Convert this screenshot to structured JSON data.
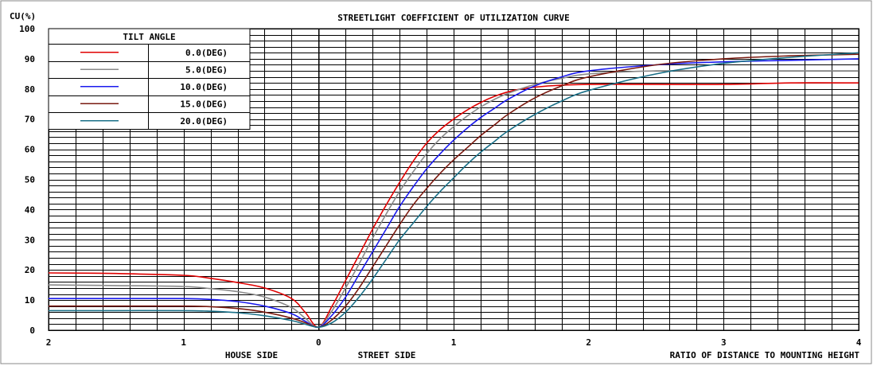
{
  "chart_data": {
    "type": "line",
    "title": "STREETLIGHT COEFFICIENT OF UTILIZATION CURVE",
    "ylabel": "CU(%)",
    "xlabel": "RATIO OF DISTANCE TO MOUNTING HEIGHT",
    "x_side_labels": {
      "house": "HOUSE SIDE",
      "street": "STREET SIDE"
    },
    "xlim": [
      -2,
      4
    ],
    "ylim": [
      0,
      100
    ],
    "x_ticks": [
      -2,
      -1,
      0,
      1,
      2,
      3,
      4
    ],
    "x_tick_labels": [
      "2",
      "1",
      "0",
      "1",
      "2",
      "3",
      "4"
    ],
    "y_ticks": [
      0,
      10,
      20,
      30,
      40,
      50,
      60,
      70,
      80,
      90,
      100
    ],
    "y_tick_labels": [
      "0",
      "10",
      "20",
      "30",
      "40",
      "50",
      "60",
      "70",
      "80",
      "90",
      "100"
    ],
    "grid": true,
    "legend": {
      "title": "TILT ANGLE",
      "placement": "top-left"
    },
    "series": [
      {
        "name": "0.0(DEG)",
        "color": "#e00000",
        "x": [
          -2,
          -1.5,
          -1,
          -0.8,
          -0.6,
          -0.4,
          -0.2,
          -0.1,
          0,
          0.1,
          0.2,
          0.3,
          0.4,
          0.5,
          0.6,
          0.7,
          0.8,
          0.9,
          1.0,
          1.1,
          1.2,
          1.3,
          1.4,
          1.5,
          1.7,
          2.0,
          2.5,
          3.0,
          3.5,
          4.0
        ],
        "y": [
          19,
          18.8,
          18.2,
          17.2,
          15.8,
          14,
          10.5,
          6,
          1,
          8,
          16.5,
          25,
          33.5,
          41.5,
          49,
          56,
          62,
          66.5,
          70,
          73,
          75.5,
          77.5,
          79,
          80,
          81,
          81.5,
          81.5,
          81.5,
          82,
          82
        ]
      },
      {
        "name": "5.0(DEG)",
        "color": "#8a8a8a",
        "x": [
          -2,
          -1.5,
          -1,
          -0.8,
          -0.6,
          -0.4,
          -0.2,
          -0.1,
          0,
          0.1,
          0.2,
          0.3,
          0.4,
          0.5,
          0.6,
          0.7,
          0.8,
          0.9,
          1.0,
          1.1,
          1.2,
          1.3,
          1.4,
          1.6,
          1.8,
          2.0,
          2.5,
          3.0,
          3.5,
          4.0
        ],
        "y": [
          15,
          14.8,
          14.5,
          13.8,
          12.8,
          11,
          7.5,
          4,
          1,
          6.5,
          14,
          22,
          30.5,
          38.5,
          46,
          52.5,
          58.5,
          63.5,
          67.5,
          71,
          74,
          76.5,
          78.5,
          81.5,
          83.5,
          85,
          86,
          86,
          86,
          86
        ]
      },
      {
        "name": "10.0(DEG)",
        "color": "#1a1aee",
        "x": [
          -2,
          -1.5,
          -1,
          -0.8,
          -0.6,
          -0.4,
          -0.2,
          -0.1,
          0,
          0.1,
          0.2,
          0.3,
          0.4,
          0.5,
          0.6,
          0.7,
          0.8,
          0.9,
          1.0,
          1.1,
          1.2,
          1.3,
          1.4,
          1.6,
          1.8,
          2.0,
          2.5,
          3.0,
          3.5,
          4.0
        ],
        "y": [
          10.5,
          10.5,
          10.5,
          10.2,
          9.5,
          8,
          5.5,
          3,
          1,
          5,
          11,
          18.5,
          26,
          33.5,
          41,
          47.5,
          53.5,
          58.5,
          63,
          67,
          70.5,
          73.5,
          76.5,
          81,
          84,
          86,
          88,
          89,
          89.5,
          90
        ]
      },
      {
        "name": "15.0(DEG)",
        "color": "#7a1a10",
        "x": [
          -2,
          -1.5,
          -1,
          -0.8,
          -0.6,
          -0.4,
          -0.2,
          -0.1,
          0,
          0.1,
          0.2,
          0.3,
          0.4,
          0.5,
          0.6,
          0.7,
          0.8,
          0.9,
          1.0,
          1.1,
          1.2,
          1.3,
          1.4,
          1.6,
          1.8,
          2.0,
          2.5,
          3.0,
          3.5,
          4.0
        ],
        "y": [
          8,
          8,
          8,
          7.8,
          7.2,
          6,
          4,
          2.5,
          1,
          3.5,
          8,
          14,
          21,
          28,
          35,
          41.5,
          47,
          52,
          56.5,
          60.5,
          64.5,
          68,
          71.5,
          77,
          81,
          84,
          88,
          90,
          91,
          91.5
        ]
      },
      {
        "name": "20.0(DEG)",
        "color": "#1a7088",
        "x": [
          -2,
          -1.5,
          -1,
          -0.8,
          -0.6,
          -0.4,
          -0.2,
          -0.1,
          0,
          0.1,
          0.2,
          0.3,
          0.4,
          0.5,
          0.6,
          0.7,
          0.8,
          0.9,
          1.0,
          1.1,
          1.2,
          1.3,
          1.4,
          1.6,
          1.8,
          2.0,
          2.5,
          3.0,
          3.5,
          4.0
        ],
        "y": [
          6.5,
          6.5,
          6.5,
          6.3,
          5.8,
          4.8,
          3.2,
          2,
          1,
          2.5,
          6,
          11,
          17,
          23.5,
          30,
          35.5,
          41,
          46,
          50.5,
          55,
          59,
          62.5,
          66,
          71.5,
          76,
          79.5,
          85,
          88.5,
          90.5,
          92
        ]
      }
    ]
  }
}
